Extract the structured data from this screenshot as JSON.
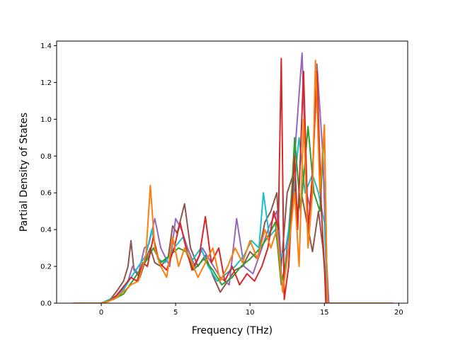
{
  "chart_data": {
    "type": "line",
    "xlabel": "Frequency (THz)",
    "ylabel": "Partial Density of States",
    "xlim": [
      -3.0,
      20.6
    ],
    "ylim": [
      0.0,
      1.425
    ],
    "x_ticks": [
      0,
      5,
      10,
      15,
      20
    ],
    "y_ticks": [
      0.0,
      0.2,
      0.4,
      0.6,
      0.8,
      1.0,
      1.2,
      1.4
    ],
    "x_tick_labels": [
      "0",
      "5",
      "10",
      "15",
      "20"
    ],
    "y_tick_labels": [
      "0.0",
      "0.2",
      "0.4",
      "0.6",
      "0.8",
      "1.0",
      "1.2",
      "1.4"
    ],
    "grid": false,
    "legend": "none",
    "x_range": [
      -1.9,
      19.6
    ],
    "series": [
      {
        "color": "#8c564b",
        "points": [
          [
            -1.9,
            0
          ],
          [
            0,
            0
          ],
          [
            0.6,
            0.02
          ],
          [
            1.0,
            0.06
          ],
          [
            1.5,
            0.12
          ],
          [
            1.8,
            0.2
          ],
          [
            2.0,
            0.34
          ],
          [
            2.2,
            0.18
          ],
          [
            2.6,
            0.14
          ],
          [
            3.0,
            0.24
          ],
          [
            3.3,
            0.3
          ],
          [
            3.6,
            0.22
          ],
          [
            4.0,
            0.2
          ],
          [
            4.5,
            0.25
          ],
          [
            4.8,
            0.42
          ],
          [
            5.1,
            0.38
          ],
          [
            5.6,
            0.54
          ],
          [
            6.0,
            0.3
          ],
          [
            6.5,
            0.2
          ],
          [
            7.0,
            0.26
          ],
          [
            7.5,
            0.15
          ],
          [
            8.0,
            0.06
          ],
          [
            8.5,
            0.12
          ],
          [
            9.0,
            0.18
          ],
          [
            9.5,
            0.2
          ],
          [
            10.0,
            0.28
          ],
          [
            10.5,
            0.24
          ],
          [
            11.0,
            0.44
          ],
          [
            11.4,
            0.5
          ],
          [
            11.8,
            0.6
          ],
          [
            12.1,
            0.2
          ],
          [
            12.5,
            0.6
          ],
          [
            12.9,
            0.7
          ],
          [
            13.2,
            0.5
          ],
          [
            13.5,
            0.58
          ],
          [
            13.8,
            0.45
          ],
          [
            14.2,
            0.28
          ],
          [
            14.6,
            0.5
          ],
          [
            14.9,
            0.3
          ],
          [
            15.2,
            0.0
          ],
          [
            19.6,
            0
          ]
        ]
      },
      {
        "color": "#9467bd",
        "points": [
          [
            -1.9,
            0
          ],
          [
            0,
            0
          ],
          [
            0.7,
            0.02
          ],
          [
            1.2,
            0.05
          ],
          [
            1.8,
            0.12
          ],
          [
            2.1,
            0.2
          ],
          [
            2.5,
            0.16
          ],
          [
            2.9,
            0.3
          ],
          [
            3.2,
            0.32
          ],
          [
            3.6,
            0.46
          ],
          [
            4.0,
            0.3
          ],
          [
            4.6,
            0.2
          ],
          [
            5.0,
            0.46
          ],
          [
            5.4,
            0.4
          ],
          [
            5.8,
            0.3
          ],
          [
            6.3,
            0.2
          ],
          [
            6.8,
            0.3
          ],
          [
            7.4,
            0.22
          ],
          [
            8.0,
            0.14
          ],
          [
            8.6,
            0.1
          ],
          [
            9.1,
            0.46
          ],
          [
            9.6,
            0.2
          ],
          [
            10.2,
            0.16
          ],
          [
            10.8,
            0.3
          ],
          [
            11.3,
            0.42
          ],
          [
            11.8,
            0.5
          ],
          [
            12.2,
            0.06
          ],
          [
            12.6,
            0.4
          ],
          [
            13.0,
            0.8
          ],
          [
            13.5,
            1.36
          ],
          [
            13.8,
            0.6
          ],
          [
            14.1,
            0.5
          ],
          [
            14.5,
            1.3
          ],
          [
            14.9,
            0.8
          ],
          [
            15.1,
            0.3
          ],
          [
            15.3,
            0.0
          ],
          [
            19.6,
            0
          ]
        ]
      },
      {
        "color": "#17becf",
        "points": [
          [
            -1.9,
            0
          ],
          [
            0,
            0
          ],
          [
            0.8,
            0.03
          ],
          [
            1.4,
            0.06
          ],
          [
            2.0,
            0.14
          ],
          [
            2.5,
            0.2
          ],
          [
            3.0,
            0.26
          ],
          [
            3.4,
            0.4
          ],
          [
            3.8,
            0.24
          ],
          [
            4.3,
            0.22
          ],
          [
            4.9,
            0.3
          ],
          [
            5.5,
            0.36
          ],
          [
            6.0,
            0.22
          ],
          [
            6.7,
            0.3
          ],
          [
            7.2,
            0.2
          ],
          [
            7.8,
            0.12
          ],
          [
            8.4,
            0.16
          ],
          [
            9.0,
            0.2
          ],
          [
            9.6,
            0.26
          ],
          [
            10.1,
            0.34
          ],
          [
            10.6,
            0.3
          ],
          [
            10.9,
            0.6
          ],
          [
            11.3,
            0.36
          ],
          [
            11.7,
            0.4
          ],
          [
            12.0,
            0.24
          ],
          [
            12.4,
            0.3
          ],
          [
            12.8,
            0.5
          ],
          [
            13.3,
            0.9
          ],
          [
            13.7,
            0.6
          ],
          [
            14.2,
            0.7
          ],
          [
            14.6,
            0.6
          ],
          [
            15.0,
            0.44
          ],
          [
            15.2,
            0.0
          ],
          [
            19.6,
            0
          ]
        ]
      },
      {
        "color": "#2ca02c",
        "points": [
          [
            -1.9,
            0
          ],
          [
            0,
            0
          ],
          [
            0.8,
            0.02
          ],
          [
            1.5,
            0.05
          ],
          [
            2.1,
            0.12
          ],
          [
            2.6,
            0.18
          ],
          [
            3.1,
            0.24
          ],
          [
            3.5,
            0.3
          ],
          [
            4.0,
            0.22
          ],
          [
            4.6,
            0.26
          ],
          [
            5.2,
            0.3
          ],
          [
            5.7,
            0.28
          ],
          [
            6.2,
            0.18
          ],
          [
            6.9,
            0.24
          ],
          [
            7.5,
            0.18
          ],
          [
            8.1,
            0.1
          ],
          [
            8.8,
            0.14
          ],
          [
            9.4,
            0.2
          ],
          [
            10.0,
            0.24
          ],
          [
            10.7,
            0.3
          ],
          [
            11.2,
            0.36
          ],
          [
            11.7,
            0.44
          ],
          [
            12.1,
            0.1
          ],
          [
            12.6,
            0.3
          ],
          [
            13.0,
            0.9
          ],
          [
            13.4,
            0.5
          ],
          [
            13.9,
            0.96
          ],
          [
            14.3,
            0.6
          ],
          [
            14.7,
            0.5
          ],
          [
            15.0,
            0.96
          ],
          [
            15.2,
            0.0
          ],
          [
            19.6,
            0
          ]
        ]
      },
      {
        "color": "#d62728",
        "points": [
          [
            -1.9,
            0
          ],
          [
            0,
            0
          ],
          [
            0.5,
            0.01
          ],
          [
            1.0,
            0.04
          ],
          [
            1.6,
            0.1
          ],
          [
            2.0,
            0.14
          ],
          [
            2.4,
            0.12
          ],
          [
            2.8,
            0.22
          ],
          [
            3.1,
            0.2
          ],
          [
            3.5,
            0.36
          ],
          [
            3.9,
            0.22
          ],
          [
            4.4,
            0.18
          ],
          [
            4.9,
            0.3
          ],
          [
            5.3,
            0.44
          ],
          [
            5.7,
            0.3
          ],
          [
            6.1,
            0.18
          ],
          [
            6.6,
            0.26
          ],
          [
            7.0,
            0.47
          ],
          [
            7.4,
            0.22
          ],
          [
            7.9,
            0.3
          ],
          [
            8.3,
            0.12
          ],
          [
            8.8,
            0.2
          ],
          [
            9.3,
            0.1
          ],
          [
            9.8,
            0.16
          ],
          [
            10.3,
            0.12
          ],
          [
            10.8,
            0.2
          ],
          [
            11.2,
            0.3
          ],
          [
            11.6,
            0.5
          ],
          [
            11.9,
            0.4
          ],
          [
            12.1,
            1.33
          ],
          [
            12.3,
            0.02
          ],
          [
            12.6,
            0.2
          ],
          [
            13.0,
            0.8
          ],
          [
            13.2,
            0.4
          ],
          [
            13.6,
            1.26
          ],
          [
            13.9,
            0.4
          ],
          [
            14.2,
            0.7
          ],
          [
            14.5,
            1.26
          ],
          [
            14.8,
            0.5
          ],
          [
            15.0,
            0.2
          ],
          [
            15.1,
            0.0
          ],
          [
            19.6,
            0
          ]
        ]
      },
      {
        "color": "#ff7f0e",
        "points": [
          [
            -1.9,
            0
          ],
          [
            0,
            0
          ],
          [
            0.5,
            0.01
          ],
          [
            1.0,
            0.03
          ],
          [
            1.6,
            0.07
          ],
          [
            2.0,
            0.1
          ],
          [
            2.5,
            0.12
          ],
          [
            3.0,
            0.26
          ],
          [
            3.3,
            0.64
          ],
          [
            3.6,
            0.3
          ],
          [
            4.0,
            0.2
          ],
          [
            4.4,
            0.14
          ],
          [
            4.8,
            0.36
          ],
          [
            5.2,
            0.2
          ],
          [
            5.6,
            0.3
          ],
          [
            6.0,
            0.24
          ],
          [
            6.5,
            0.14
          ],
          [
            7.0,
            0.22
          ],
          [
            7.5,
            0.3
          ],
          [
            8.0,
            0.12
          ],
          [
            8.5,
            0.2
          ],
          [
            9.0,
            0.3
          ],
          [
            9.5,
            0.22
          ],
          [
            10.0,
            0.34
          ],
          [
            10.5,
            0.24
          ],
          [
            11.0,
            0.4
          ],
          [
            11.4,
            0.3
          ],
          [
            11.8,
            0.4
          ],
          [
            12.2,
            0.06
          ],
          [
            12.6,
            0.3
          ],
          [
            13.0,
            0.6
          ],
          [
            13.3,
            0.2
          ],
          [
            13.6,
            1.0
          ],
          [
            13.9,
            0.3
          ],
          [
            14.2,
            0.6
          ],
          [
            14.4,
            1.32
          ],
          [
            14.7,
            0.6
          ],
          [
            15.0,
            0.97
          ],
          [
            15.2,
            0.0
          ],
          [
            19.6,
            0
          ]
        ]
      }
    ]
  }
}
